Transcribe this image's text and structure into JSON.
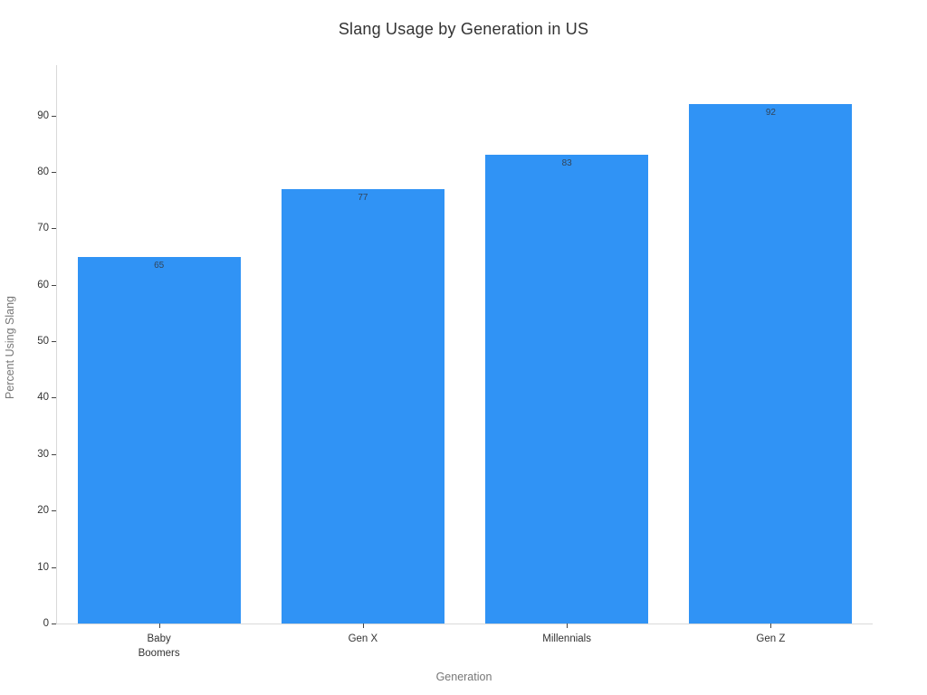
{
  "page": {
    "background": "#ffffff"
  },
  "chart_data": {
    "type": "bar",
    "title": "Slang Usage by Generation in US",
    "xlabel": "Generation",
    "ylabel": "Percent Using Slang",
    "categories": [
      "Baby\nBoomers",
      "Gen X",
      "Millennials",
      "Gen Z"
    ],
    "values": [
      65,
      77,
      83,
      92
    ],
    "yticks": [
      0,
      10,
      20,
      30,
      40,
      50,
      60,
      70,
      80,
      90
    ],
    "ylim": [
      0,
      98.9
    ],
    "grid": false,
    "legend": "none",
    "value_labels_position": "inside-top",
    "colors": {
      "bar": "#3093f5",
      "value_label": "#32455a",
      "axis_line": "#d9d9d9",
      "tick_mark": "#444444",
      "tick_label": "#333333",
      "axis_title": "#777777",
      "chart_title": "#333333"
    }
  }
}
